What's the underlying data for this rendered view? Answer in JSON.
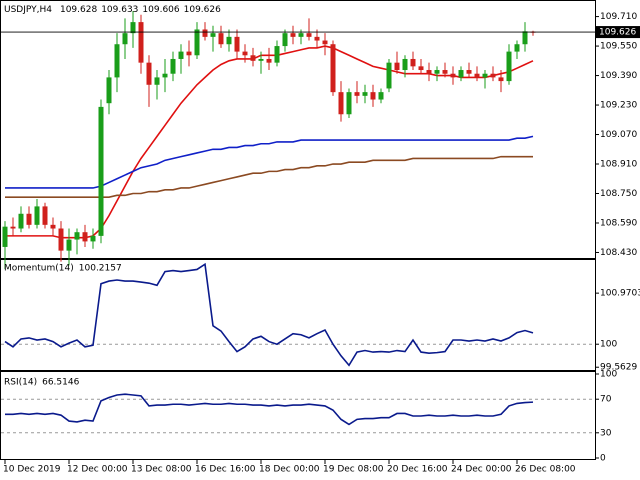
{
  "chart_data": [
    {
      "type": "candlestick",
      "title": "USDJPY,H4",
      "categories": [
        "10 Dec 2019",
        null,
        null,
        null,
        null,
        null,
        null,
        null,
        "12 Dec 00:00",
        null,
        null,
        null,
        null,
        null,
        null,
        null,
        "13 Dec 08:00",
        null,
        null,
        null,
        null,
        null,
        null,
        null,
        "16 Dec 16:00",
        null,
        null,
        null,
        null,
        null,
        null,
        null,
        "18 Dec 00:00",
        null,
        null,
        null,
        null,
        null,
        null,
        null,
        "19 Dec 08:00",
        null,
        null,
        null,
        null,
        null,
        null,
        null,
        "20 Dec 16:00",
        null,
        null,
        null,
        null,
        null,
        null,
        null,
        "24 Dec 00:00",
        null,
        null,
        null,
        null,
        null,
        null,
        null,
        "26 Dec 08:00",
        null,
        null
      ],
      "open": [
        108.46,
        108.57,
        108.56,
        108.64,
        108.58,
        108.68,
        108.58,
        108.56,
        108.44,
        108.5,
        108.54,
        108.49,
        108.52,
        109.24,
        109.38,
        109.56,
        109.62,
        109.68,
        109.46,
        109.34,
        109.38,
        109.4,
        109.48,
        109.52,
        109.5,
        109.64,
        109.6,
        109.62,
        109.56,
        109.6,
        109.52,
        109.5,
        109.47,
        109.48,
        109.46,
        109.55,
        109.62,
        109.6,
        109.62,
        109.6,
        109.58,
        109.56,
        109.3,
        109.18,
        109.3,
        109.28,
        109.3,
        109.26,
        109.32,
        109.46,
        109.42,
        109.48,
        109.44,
        109.42,
        109.4,
        109.42,
        109.4,
        109.38,
        109.42,
        109.4,
        109.38,
        109.4,
        109.38,
        109.36,
        109.52,
        109.56,
        109.628
      ],
      "high": [
        108.6,
        108.62,
        108.68,
        108.68,
        108.72,
        108.7,
        108.62,
        108.6,
        108.56,
        108.56,
        108.58,
        108.56,
        109.26,
        109.42,
        109.62,
        109.7,
        109.74,
        109.72,
        109.5,
        109.42,
        109.48,
        109.52,
        109.56,
        109.58,
        109.68,
        109.68,
        109.66,
        109.66,
        109.64,
        109.64,
        109.56,
        109.54,
        109.52,
        109.54,
        109.58,
        109.64,
        109.66,
        109.64,
        109.7,
        109.64,
        109.62,
        109.58,
        109.36,
        109.32,
        109.36,
        109.34,
        109.34,
        109.32,
        109.48,
        109.52,
        109.5,
        109.52,
        109.48,
        109.46,
        109.44,
        109.46,
        109.44,
        109.44,
        109.46,
        109.44,
        109.42,
        109.44,
        109.42,
        109.56,
        109.58,
        109.68,
        109.633
      ],
      "low": [
        108.34,
        108.52,
        108.54,
        108.56,
        108.56,
        108.56,
        108.52,
        108.38,
        108.36,
        108.42,
        108.46,
        108.45,
        108.48,
        109.18,
        109.3,
        109.48,
        109.54,
        109.4,
        109.22,
        109.26,
        109.3,
        109.36,
        109.4,
        109.44,
        109.48,
        109.58,
        109.52,
        109.54,
        109.52,
        109.48,
        109.46,
        109.44,
        109.4,
        109.42,
        109.44,
        109.52,
        109.56,
        109.56,
        109.58,
        109.54,
        109.5,
        109.28,
        109.14,
        109.16,
        109.24,
        109.24,
        109.22,
        109.24,
        109.3,
        109.4,
        109.38,
        109.42,
        109.4,
        109.36,
        109.36,
        109.38,
        109.34,
        109.36,
        109.38,
        109.36,
        109.32,
        109.36,
        109.3,
        109.34,
        109.48,
        109.52,
        109.606
      ],
      "close": [
        108.57,
        108.56,
        108.64,
        108.58,
        108.68,
        108.58,
        108.56,
        108.44,
        108.5,
        108.54,
        108.49,
        108.52,
        109.22,
        109.38,
        109.56,
        109.62,
        109.68,
        109.46,
        109.34,
        109.38,
        109.4,
        109.48,
        109.52,
        109.5,
        109.64,
        109.6,
        109.62,
        109.56,
        109.6,
        109.52,
        109.5,
        109.47,
        109.48,
        109.46,
        109.55,
        109.62,
        109.6,
        109.62,
        109.6,
        109.58,
        109.56,
        109.3,
        109.18,
        109.3,
        109.28,
        109.3,
        109.26,
        109.3,
        109.46,
        109.42,
        109.48,
        109.44,
        109.42,
        109.4,
        109.42,
        109.4,
        109.38,
        109.42,
        109.4,
        109.38,
        109.4,
        109.38,
        109.36,
        109.52,
        109.56,
        109.63,
        109.626
      ],
      "up_color": "#1a9e1a",
      "down_color": "#d0201c",
      "overlays": [
        {
          "color": "#e01010",
          "values": [
            108.52,
            108.52,
            108.52,
            108.52,
            108.52,
            108.52,
            108.52,
            108.51,
            108.51,
            108.51,
            108.51,
            108.52,
            108.56,
            108.63,
            108.71,
            108.79,
            108.87,
            108.94,
            109.0,
            109.06,
            109.12,
            109.18,
            109.24,
            109.29,
            109.34,
            109.38,
            109.42,
            109.45,
            109.47,
            109.48,
            109.48,
            109.48,
            109.5,
            109.5,
            109.5,
            109.51,
            109.52,
            109.53,
            109.54,
            109.54,
            109.55,
            109.54,
            109.52,
            109.5,
            109.48,
            109.46,
            109.44,
            109.43,
            109.42,
            109.41,
            109.4,
            109.4,
            109.4,
            109.4,
            109.39,
            109.39,
            109.39,
            109.38,
            109.38,
            109.38,
            109.38,
            109.39,
            109.4,
            109.41,
            109.43,
            109.45,
            109.47
          ]
        },
        {
          "color": "#1020c8",
          "values": [
            108.78,
            108.78,
            108.78,
            108.78,
            108.78,
            108.78,
            108.78,
            108.78,
            108.78,
            108.78,
            108.78,
            108.78,
            108.79,
            108.81,
            108.83,
            108.85,
            108.87,
            108.89,
            108.9,
            108.91,
            108.93,
            108.94,
            108.95,
            108.96,
            108.97,
            108.98,
            108.99,
            108.99,
            109.0,
            109.0,
            109.01,
            109.01,
            109.02,
            109.02,
            109.03,
            109.03,
            109.03,
            109.04,
            109.04,
            109.04,
            109.04,
            109.04,
            109.04,
            109.04,
            109.04,
            109.04,
            109.04,
            109.04,
            109.04,
            109.04,
            109.04,
            109.04,
            109.04,
            109.04,
            109.04,
            109.04,
            109.04,
            109.04,
            109.04,
            109.04,
            109.04,
            109.04,
            109.04,
            109.04,
            109.05,
            109.05,
            109.06
          ]
        },
        {
          "color": "#8b4a22",
          "values": [
            108.73,
            108.73,
            108.73,
            108.73,
            108.73,
            108.73,
            108.73,
            108.73,
            108.73,
            108.73,
            108.73,
            108.73,
            108.73,
            108.73,
            108.74,
            108.74,
            108.75,
            108.75,
            108.76,
            108.76,
            108.77,
            108.77,
            108.78,
            108.78,
            108.79,
            108.8,
            108.81,
            108.82,
            108.83,
            108.84,
            108.85,
            108.86,
            108.86,
            108.87,
            108.87,
            108.88,
            108.88,
            108.89,
            108.89,
            108.9,
            108.9,
            108.91,
            108.91,
            108.92,
            108.92,
            108.92,
            108.93,
            108.93,
            108.93,
            108.93,
            108.93,
            108.94,
            108.94,
            108.94,
            108.94,
            108.94,
            108.94,
            108.94,
            108.94,
            108.94,
            108.94,
            108.94,
            108.95,
            108.95,
            108.95,
            108.95,
            108.95
          ]
        }
      ],
      "ylim": [
        108.4,
        109.8
      ],
      "yticks": [
        {
          "value": 109.71,
          "label": "109.710"
        },
        {
          "value": 109.55,
          "label": "109.550"
        },
        {
          "value": 109.39,
          "label": "109.390"
        },
        {
          "value": 109.23,
          "label": "109.230"
        },
        {
          "value": 109.07,
          "label": "109.070"
        },
        {
          "value": 108.91,
          "label": "108.910"
        },
        {
          "value": 108.75,
          "label": "108.750"
        },
        {
          "value": 108.59,
          "label": "108.590"
        },
        {
          "value": 108.43,
          "label": "108.430"
        }
      ],
      "price_line": true
    },
    {
      "type": "line",
      "title": "Momentum(14)",
      "color": "#0a1a8c",
      "values": [
        100.05,
        99.95,
        100.1,
        100.12,
        100.08,
        100.1,
        100.05,
        99.95,
        100.02,
        100.08,
        99.95,
        99.98,
        101.15,
        101.2,
        101.22,
        101.2,
        101.2,
        101.18,
        101.16,
        101.12,
        101.38,
        101.4,
        101.38,
        101.4,
        101.42,
        101.52,
        100.35,
        100.25,
        100.05,
        99.86,
        99.95,
        100.1,
        100.15,
        100.05,
        100.0,
        100.1,
        100.2,
        100.18,
        100.12,
        100.2,
        100.27,
        100.0,
        99.78,
        99.6,
        99.85,
        99.88,
        99.85,
        99.86,
        99.85,
        99.88,
        99.86,
        100.08,
        99.85,
        99.83,
        99.84,
        99.86,
        100.08,
        100.08,
        100.06,
        100.08,
        100.06,
        100.1,
        100.06,
        100.12,
        100.22,
        100.26,
        100.2157
      ],
      "ylim": [
        99.51,
        101.6
      ],
      "yticks": [
        100.9703,
        100,
        99.5629
      ],
      "levels": [
        100
      ]
    },
    {
      "type": "line",
      "title": "RSI(14)",
      "color": "#0a1a8c",
      "values": [
        52,
        52,
        53,
        52,
        53,
        52,
        53,
        51,
        44,
        43,
        45,
        44,
        68,
        72,
        75,
        76,
        75,
        74,
        62,
        63,
        63,
        64,
        64,
        63,
        64,
        65,
        64,
        64,
        65,
        64,
        64,
        63,
        63,
        62,
        63,
        62,
        63,
        63,
        64,
        63,
        62,
        57,
        46,
        40,
        46,
        47,
        47,
        48,
        48,
        53,
        53,
        50,
        50,
        51,
        50,
        50,
        51,
        50,
        50,
        51,
        50,
        50,
        52,
        62,
        65,
        66,
        66.5146
      ],
      "ylim": [
        0,
        100
      ],
      "yticks": [
        100,
        70,
        30,
        0
      ],
      "levels": [
        70,
        30
      ]
    }
  ]
}
